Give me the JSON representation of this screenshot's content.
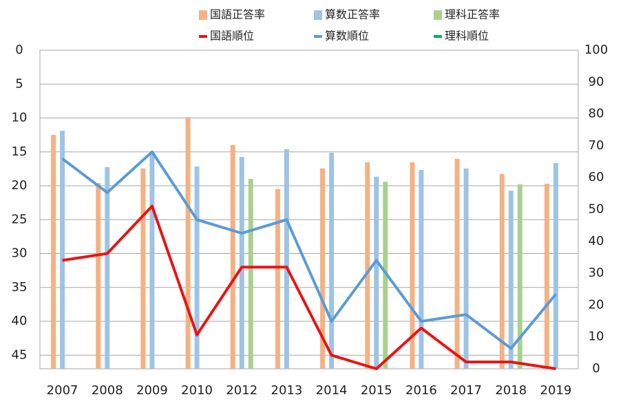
{
  "chart_data": {
    "type": "combo",
    "categories": [
      "2007",
      "2008",
      "2009",
      "2010",
      "2012",
      "2013",
      "2014",
      "2015",
      "2016",
      "2017",
      "2018",
      "2019"
    ],
    "series": [
      {
        "name": "国語正答率",
        "type": "bar",
        "axis": "y2",
        "color": "#f4b183",
        "values": [
          73.4,
          58.3,
          62.9,
          79,
          70.2,
          56.4,
          62.9,
          64.8,
          64.8,
          65.9,
          61.1,
          58.1
        ]
      },
      {
        "name": "算数正答率",
        "type": "bar",
        "axis": "y2",
        "color": "#9dc3e6",
        "values": [
          74.7,
          63.3,
          68.3,
          63.5,
          66.5,
          68.9,
          67.8,
          60.3,
          62.4,
          62.9,
          55.9,
          64.6
        ]
      },
      {
        "name": "理科正答率",
        "type": "bar",
        "axis": "y2",
        "color": "#a9d18e",
        "values": [
          null,
          null,
          null,
          null,
          59.6,
          null,
          null,
          58.7,
          null,
          null,
          57.9,
          null
        ]
      },
      {
        "name": "国語順位",
        "type": "line",
        "axis": "y",
        "color": "#ee1111",
        "values": [
          31,
          30,
          23,
          42,
          32,
          32,
          45,
          47,
          41,
          46,
          46,
          47
        ]
      },
      {
        "name": "算数順位",
        "type": "line",
        "axis": "y",
        "color": "#5b9bd5",
        "values": [
          16,
          21,
          15,
          25,
          27,
          25,
          40,
          31,
          40,
          39,
          44,
          36
        ]
      },
      {
        "name": "理科順位",
        "type": "line",
        "axis": "y",
        "color": "#00b050",
        "values": [
          null,
          null,
          null,
          null,
          null,
          null,
          null,
          null,
          null,
          null,
          null,
          null
        ]
      }
    ],
    "ylim": [
      0,
      47
    ],
    "y_reversed": true,
    "yticks": [
      0,
      5,
      10,
      15,
      20,
      25,
      30,
      35,
      40,
      45
    ],
    "y2lim": [
      0,
      100
    ],
    "y2ticks": [
      0,
      10,
      20,
      30,
      40,
      50,
      60,
      70,
      80,
      90,
      100
    ],
    "grid": true
  }
}
